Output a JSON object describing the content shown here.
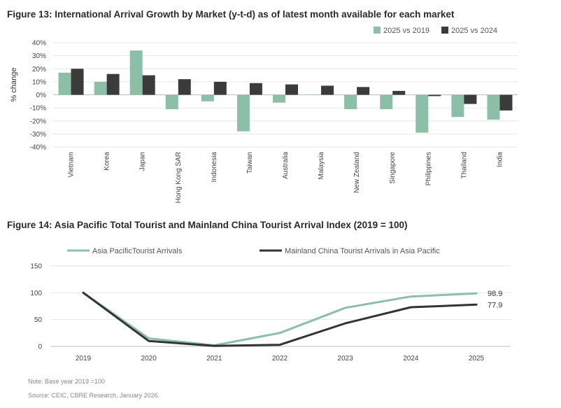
{
  "chart_data": [
    {
      "type": "bar",
      "title": "Figure 13: International Arrival Growth by Market (y-t-d) as of latest month available for each market",
      "ylabel": "% change",
      "ylim": [
        -40,
        40
      ],
      "yticks": [
        "40%",
        "30%",
        "20%",
        "10%",
        "0%",
        "-10%",
        "-20%",
        "-30%",
        "-40%"
      ],
      "yticks_values": [
        40,
        30,
        20,
        10,
        0,
        -10,
        -20,
        -30,
        -40
      ],
      "grid": true,
      "legend": "top-right",
      "categories": [
        "Vietnam",
        "Korea",
        "Japan",
        "Hong Kong SAR",
        "Indonesia",
        "Taiwan",
        "Australia",
        "Malaysia",
        "New Zealand",
        "Singapore",
        "Philippines",
        "Thailand",
        "India"
      ],
      "series": [
        {
          "name": "2025 vs 2019",
          "color": "#8dbfa8",
          "values": [
            17,
            10,
            34,
            -11,
            -5,
            -28,
            -6,
            0,
            -11,
            -11,
            -29,
            -17,
            -19
          ]
        },
        {
          "name": "2025 vs 2024",
          "color": "#3b3b3b",
          "values": [
            20,
            16,
            15,
            12,
            10,
            9,
            8,
            7,
            6,
            3,
            -1,
            -7,
            -12
          ]
        }
      ]
    },
    {
      "type": "line",
      "title": "Figure 14: Asia Pacific Total Tourist and Mainland China Tourist Arrival Index (2019 = 100)",
      "x": [
        "2019",
        "2020",
        "2021",
        "2022",
        "2023",
        "2024",
        "2025"
      ],
      "ylim": [
        0,
        150
      ],
      "yticks": [
        "150",
        "100",
        "50",
        "0"
      ],
      "yticks_values": [
        150,
        100,
        50,
        0
      ],
      "grid": true,
      "legend": "top",
      "series": [
        {
          "name": "Asia PacificTourist Arrivals",
          "color": "#8dbfa8",
          "values": [
            100,
            15,
            2,
            25,
            72,
            93,
            98.9
          ],
          "end_label": "98.9"
        },
        {
          "name": "Mainland China Tourist Arrivals in Asia Pacific",
          "color": "#333333",
          "values": [
            100,
            10,
            1,
            3,
            43,
            73,
            77.9
          ],
          "end_label": "77.9"
        }
      ],
      "note": "Note: Base year 2019 =100",
      "source": "Source: CEIC, CBRE Research, January 2026."
    }
  ]
}
